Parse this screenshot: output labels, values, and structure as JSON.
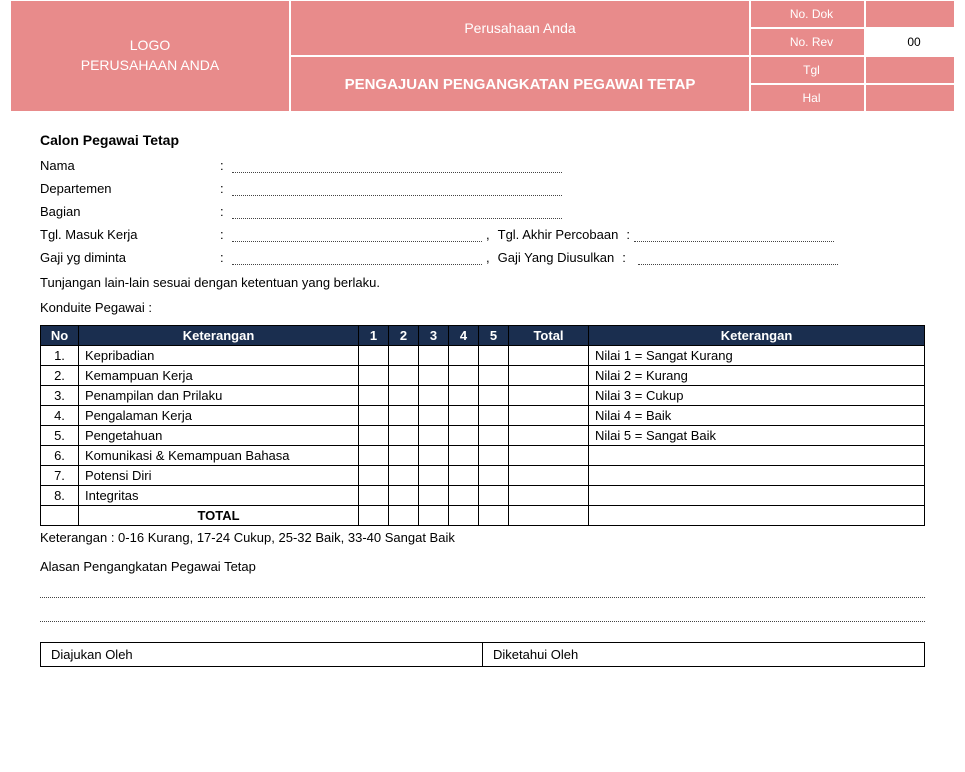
{
  "header": {
    "logo_line1": "LOGO",
    "logo_line2": "PERUSAHAAN ANDA",
    "company": "Perusahaan Anda",
    "title": "PENGAJUAN PENGANGKATAN PEGAWAI TETAP",
    "no_dok_label": "No. Dok",
    "no_dok_value": "",
    "no_rev_label": "No. Rev",
    "no_rev_value": "00",
    "tgl_label": "Tgl",
    "tgl_value": "",
    "hal_label": "Hal",
    "hal_value": ""
  },
  "section": {
    "calon_title": "Calon Pegawai Tetap",
    "fields": {
      "nama": "Nama",
      "departemen": "Departemen",
      "bagian": "Bagian",
      "tgl_masuk": "Tgl. Masuk Kerja",
      "tgl_akhir": "Tgl. Akhir Percobaan",
      "gaji_minta": "Gaji yg diminta",
      "gaji_usul": "Gaji Yang Diusulkan"
    },
    "tunjangan_note": "Tunjangan lain-lain sesuai dengan ketentuan yang berlaku.",
    "konduite_title": "Konduite Pegawai :"
  },
  "table": {
    "headers": {
      "no": "No",
      "ket": "Keterangan",
      "s1": "1",
      "s2": "2",
      "s3": "3",
      "s4": "4",
      "s5": "5",
      "total": "Total",
      "ket2": "Keterangan"
    },
    "rows": [
      {
        "no": "1.",
        "ket": "Kepribadian",
        "ket2": "Nilai 1 = Sangat Kurang"
      },
      {
        "no": "2.",
        "ket": "Kemampuan Kerja",
        "ket2": "Nilai 2 = Kurang"
      },
      {
        "no": "3.",
        "ket": "Penampilan dan Prilaku",
        "ket2": "Nilai 3 = Cukup"
      },
      {
        "no": "4.",
        "ket": "Pengalaman Kerja",
        "ket2": "Nilai 4 = Baik"
      },
      {
        "no": "5.",
        "ket": "Pengetahuan",
        "ket2": "Nilai 5 = Sangat Baik"
      },
      {
        "no": "6.",
        "ket": "Komunikasi & Kemampuan Bahasa",
        "ket2": ""
      },
      {
        "no": "7.",
        "ket": "Potensi Diri",
        "ket2": ""
      },
      {
        "no": "8.",
        "ket": "Integritas",
        "ket2": ""
      }
    ],
    "total_label": "TOTAL",
    "legend": "Keterangan : 0-16 Kurang, 17-24 Cukup, 25-32 Baik, 33-40 Sangat Baik"
  },
  "alasan": {
    "title": "Alasan Pengangkatan Pegawai Tetap"
  },
  "signatures": {
    "diajukan": "Diajukan Oleh",
    "diketahui": "Diketahui Oleh"
  },
  "colors": {
    "header_bg": "#e88b8b",
    "table_header_bg": "#1a2e4f",
    "border": "#000000"
  }
}
